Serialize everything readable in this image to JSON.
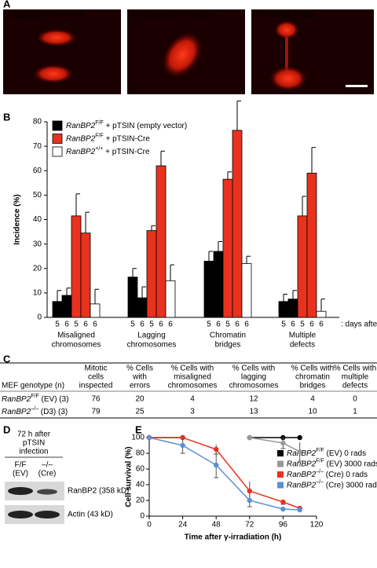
{
  "panel_labels": [
    "A",
    "B",
    "C",
    "D",
    "E"
  ],
  "images": [
    "Lagging chromosome",
    "Misaligned chromosome",
    "Chromatin bridge"
  ],
  "chart_data": [
    {
      "type": "bar",
      "ylabel": "Incidence (%)",
      "ylim": [
        0,
        80
      ],
      "yticks": [
        0,
        10,
        20,
        30,
        40,
        50,
        60,
        70,
        80
      ],
      "categories": [
        [
          "Misaligned",
          "chromosomes"
        ],
        [
          "Lagging",
          "chromosomes"
        ],
        [
          "Chromatin",
          "bridges"
        ],
        [
          "Multiple",
          "defects"
        ]
      ],
      "annotation": ": days after Cre",
      "series": [
        {
          "name": {
            "gene": "RanBP2",
            "genotype": "F/F",
            "rest": " + pTSIN (empty vector)"
          },
          "color": "#000000",
          "days": [
            "5",
            "6"
          ],
          "values": [
            [
              6.5,
              9
            ],
            [
              16.5,
              8
            ],
            [
              23,
              27
            ],
            [
              6.5,
              7.5
            ]
          ],
          "errors": [
            [
              4.5,
              3
            ],
            [
              3.5,
              4.5
            ],
            [
              4,
              4
            ],
            [
              3,
              3.5
            ]
          ]
        },
        {
          "name": {
            "gene": "RanBP2",
            "genotype": "F/F",
            "rest": " + pTSIN-Cre"
          },
          "color": "#e8321e",
          "days": [
            "5",
            "6"
          ],
          "values": [
            [
              41.5,
              34.5
            ],
            [
              35.5,
              62
            ],
            [
              56.5,
              76.5
            ],
            [
              41.5,
              59
            ]
          ],
          "errors": [
            [
              9,
              8.5
            ],
            [
              2,
              6
            ],
            [
              3,
              12
            ],
            [
              8,
              10.5
            ]
          ]
        },
        {
          "name": {
            "gene": "RanBP2",
            "genotype": "+/+",
            "rest": " + pTSIN-Cre"
          },
          "color": "#ffffff",
          "days": [
            "6"
          ],
          "values": [
            [
              5.5
            ],
            [
              15
            ],
            [
              22
            ],
            [
              2.5
            ]
          ],
          "errors": [
            [
              6
            ],
            [
              6.5
            ],
            [
              3
            ],
            [
              5
            ]
          ]
        }
      ]
    },
    {
      "type": "line",
      "xlabel": "Time after γ-irradiation (h)",
      "ylabel": "Cell survival (%)",
      "xlim": [
        0,
        120
      ],
      "xticks": [
        0,
        24,
        48,
        72,
        96,
        120
      ],
      "ylim": [
        0,
        100
      ],
      "yticks": [
        0,
        20,
        40,
        60,
        80,
        100
      ],
      "x": [
        0,
        24,
        48,
        72,
        96,
        108
      ],
      "series": [
        {
          "name": {
            "gene": "RanBP2",
            "genotype": "F/F",
            "rest": " (EV) 0 rads"
          },
          "color": "#000000",
          "values": [
            100,
            100,
            null,
            100,
            100,
            100
          ]
        },
        {
          "name": {
            "gene": "RanBP2",
            "genotype": "F/F",
            "rest": " (EV) 3000 rads"
          },
          "color": "#999999",
          "values": [
            100,
            100,
            null,
            100,
            93,
            82
          ],
          "errors": [
            null,
            null,
            null,
            null,
            7,
            12
          ]
        },
        {
          "name": {
            "gene": "RanBP2",
            "genotype": "–/–",
            "rest": " (Cre) 0 rads"
          },
          "color": "#e8321e",
          "values": [
            100,
            100,
            85,
            32,
            18,
            10
          ],
          "errors": [
            null,
            null,
            6,
            12,
            3,
            null
          ]
        },
        {
          "name": {
            "gene": "RanBP2",
            "genotype": "–/–",
            "rest": " (Cre) 3000 rads"
          },
          "color": "#5b8fd6",
          "values": [
            100,
            90,
            65,
            20,
            9,
            8
          ],
          "errors": [
            null,
            10,
            16,
            8,
            null,
            null
          ]
        }
      ]
    }
  ],
  "table": {
    "columns": [
      [
        "MEF genotype (n)"
      ],
      [
        "Mitotic",
        "cells",
        "inspected"
      ],
      [
        "% Cells",
        "with",
        "errors"
      ],
      [
        "% Cells with",
        "misaligned",
        "chromosomes"
      ],
      [
        "% Cells with",
        "lagging",
        "chromosomes"
      ],
      [
        "% Cells with",
        "chromatin",
        "bridges"
      ],
      [
        "% Cells with",
        "multiple",
        "defects"
      ]
    ],
    "rows": [
      {
        "label": {
          "gene": "RanBP2",
          "genotype": "F/F",
          "rest": " (EV) (3)"
        },
        "cells": [
          "76",
          "20",
          "4",
          "12",
          "4",
          "0"
        ]
      },
      {
        "label": {
          "gene": "RanBP2",
          "genotype": "–/–",
          "rest": " (D3) (3)"
        },
        "cells": [
          "79",
          "25",
          "3",
          "13",
          "10",
          "1"
        ]
      }
    ]
  },
  "blot": {
    "header": [
      "72 h after",
      "pTSIN",
      "infection"
    ],
    "lanes": [
      [
        "F/F",
        "(EV)"
      ],
      [
        "–/–",
        "(Cre)"
      ]
    ],
    "bands": [
      "RanBP2 (358 kD)",
      "Actin (43 kD)"
    ]
  }
}
